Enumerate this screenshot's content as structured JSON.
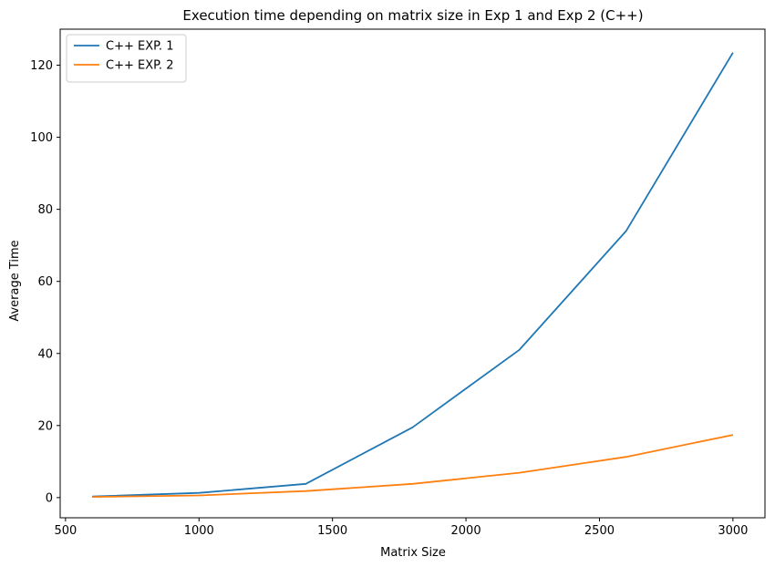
{
  "chart_data": {
    "type": "line",
    "title": "Execution time depending on matrix size in Exp 1 and Exp 2 (C++)",
    "xlabel": "Matrix Size",
    "ylabel": "Average Time",
    "x": [
      600,
      1000,
      1400,
      1800,
      2200,
      2600,
      3000
    ],
    "xlim": [
      480,
      3120
    ],
    "ylim": [
      -5.6,
      130
    ],
    "xticks": [
      500,
      1000,
      1500,
      2000,
      2500,
      3000
    ],
    "yticks": [
      0,
      20,
      40,
      60,
      80,
      100,
      120
    ],
    "grid": false,
    "legend_position": "top-left",
    "series": [
      {
        "name": "C++ EXP. 1",
        "color": "#1f77b4",
        "values": [
          0.3,
          1.3,
          3.8,
          19.5,
          41.0,
          74.0,
          123.5
        ]
      },
      {
        "name": "C++ EXP. 2",
        "color": "#ff7f0e",
        "values": [
          0.2,
          0.6,
          1.8,
          3.8,
          6.9,
          11.3,
          17.4
        ]
      }
    ]
  }
}
